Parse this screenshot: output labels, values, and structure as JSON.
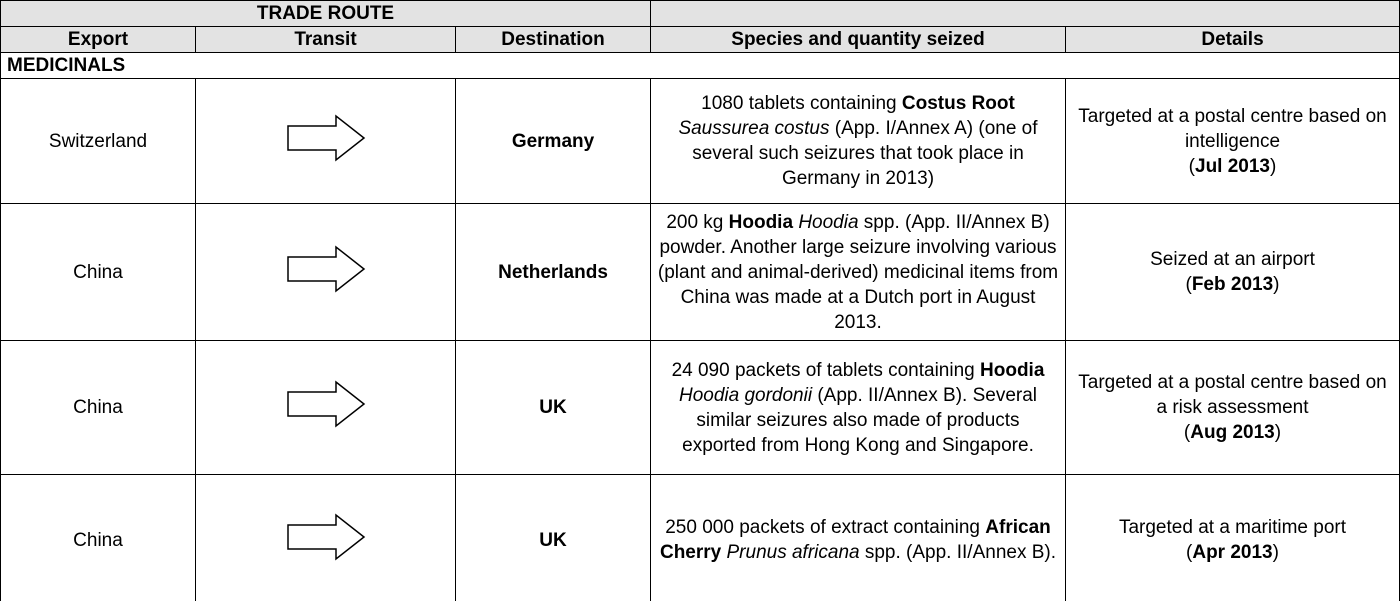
{
  "table": {
    "group_header": "TRADE ROUTE",
    "columns": [
      "Export",
      "Transit",
      "Destination",
      "Species and quantity seized",
      "Details"
    ],
    "section": "MEDICINALS",
    "rows": [
      {
        "export": "Switzerland",
        "destination": "Germany",
        "species": [
          {
            "text": "1080 tablets containing "
          },
          {
            "text": "Costus Root",
            "bold": true
          },
          {
            "text": " "
          },
          {
            "text": "Saussurea costus",
            "italic": true
          },
          {
            "text": " (App. I/Annex A) (one of several such seizures that took place in Germany in 2013)"
          }
        ],
        "details": [
          {
            "text": "Targeted at a postal centre based on intelligence"
          },
          {
            "text": "(",
            "newline": true
          },
          {
            "text": "Jul 2013",
            "bold": true
          },
          {
            "text": ")"
          }
        ]
      },
      {
        "export": "China",
        "destination": "Netherlands",
        "species": [
          {
            "text": "200 kg "
          },
          {
            "text": "Hoodia",
            "bold": true
          },
          {
            "text": " "
          },
          {
            "text": "Hoodia",
            "italic": true
          },
          {
            "text": " spp. (App. II/Annex B) powder. Another large seizure involving various (plant and animal-derived) medicinal items from China was made at a Dutch port in August 2013."
          }
        ],
        "details": [
          {
            "text": "Seized at an airport"
          },
          {
            "text": "(",
            "newline": true
          },
          {
            "text": "Feb 2013",
            "bold": true
          },
          {
            "text": ")"
          }
        ]
      },
      {
        "export": "China",
        "destination": "UK",
        "species": [
          {
            "text": "24 090 packets of tablets containing "
          },
          {
            "text": "Hoodia",
            "bold": true
          },
          {
            "text": " "
          },
          {
            "text": "Hoodia gordonii",
            "italic": true
          },
          {
            "text": " (App. II/Annex B). Several similar seizures also made of products exported from Hong Kong and Singapore."
          }
        ],
        "details": [
          {
            "text": "Targeted at a postal centre based on a risk assessment"
          },
          {
            "text": "(",
            "newline": true
          },
          {
            "text": "Aug 2013",
            "bold": true
          },
          {
            "text": ")"
          }
        ]
      },
      {
        "export": "China",
        "destination": "UK",
        "species": [
          {
            "text": "250 000 packets of extract containing "
          },
          {
            "text": "African Cherry",
            "bold": true
          },
          {
            "text": " "
          },
          {
            "text": "Prunus africana",
            "italic": true
          },
          {
            "text": " spp. (App. II/Annex B)."
          }
        ],
        "details": [
          {
            "text": "Targeted at a maritime port"
          },
          {
            "text": "(",
            "newline": true
          },
          {
            "text": "Apr 2013",
            "bold": true
          },
          {
            "text": ")"
          }
        ]
      }
    ]
  }
}
